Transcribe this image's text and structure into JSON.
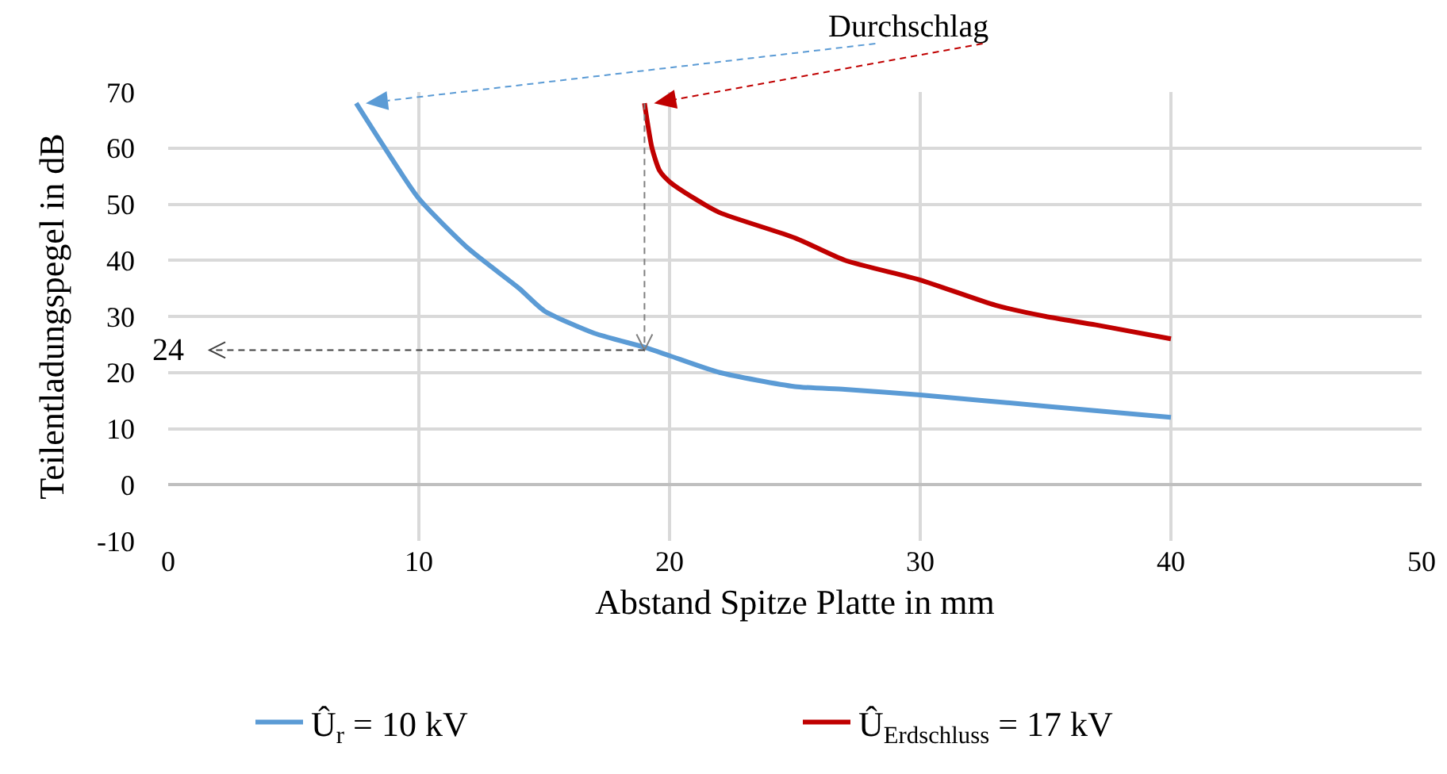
{
  "chart_data": {
    "type": "line",
    "xlabel": "Abstand Spitze Platte in mm",
    "ylabel": "Teilentladungspegel in dB",
    "xlim": [
      0,
      50
    ],
    "xticks": [
      0,
      10,
      20,
      30,
      40,
      50
    ],
    "ylim": [
      -10,
      70
    ],
    "yticks": [
      -10,
      0,
      10,
      20,
      30,
      40,
      50,
      60,
      70
    ],
    "grid": true,
    "legend": "bottom",
    "marker": "none",
    "line_style": "solid",
    "series": [
      {
        "name": "Û$_{r}$ = 10 kV",
        "color": "#5b9bd5",
        "x": [
          7.5,
          8.5,
          10,
          12,
          14,
          15,
          17,
          19,
          20,
          22,
          25,
          27,
          30,
          35,
          40
        ],
        "values": [
          68,
          61,
          51,
          42,
          35,
          31,
          27,
          24.5,
          23,
          20,
          17.5,
          17,
          16,
          14,
          12
        ]
      },
      {
        "name": "Û$_{Erdschluss}$ = 17 kV",
        "color": "#c00000",
        "x": [
          19,
          19.3,
          19.6,
          20,
          21,
          22,
          25,
          27,
          30,
          33,
          35,
          37,
          40
        ],
        "values": [
          68,
          60,
          56,
          54,
          51,
          48.5,
          44,
          40,
          36.5,
          32,
          30,
          28.5,
          26
        ]
      }
    ],
    "ref_lines": [
      {
        "axis": "y",
        "value": 24,
        "label": "24",
        "color": "#404040",
        "line_style": "dashed"
      }
    ],
    "annotations": [
      "Durchschlag"
    ]
  }
}
